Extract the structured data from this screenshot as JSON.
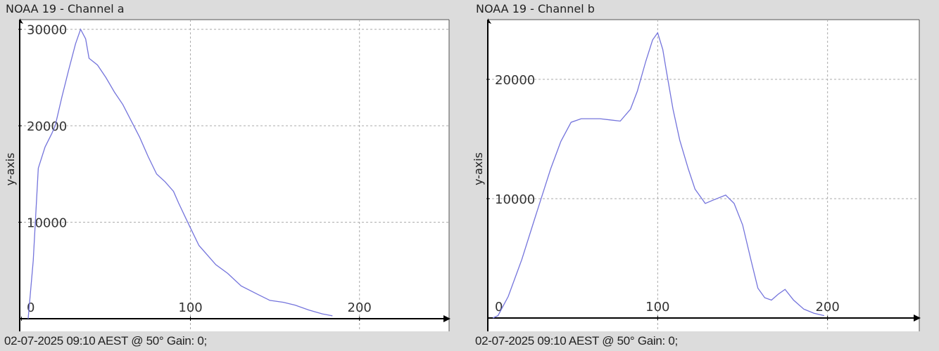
{
  "chart_data": [
    {
      "type": "line",
      "title": "NOAA 19 - Channel a",
      "xlabel": "",
      "ylabel": "y-axis",
      "footer": "02-07-2025 09:10 AEST @ 50° Gain: 0;",
      "xlim": [
        -1,
        253
      ],
      "ylim": [
        0,
        31000
      ],
      "xticks": [
        0,
        100,
        200
      ],
      "xtick_labels": [
        "0",
        "100",
        "200"
      ],
      "yticks": [
        10000,
        20000,
        30000
      ],
      "ytick_labels": [
        "10000",
        "20000",
        "30000"
      ],
      "grid": true,
      "line_color": "#7474dc",
      "series": [
        {
          "name": "Channel a",
          "x": [
            4,
            7,
            10,
            14,
            18,
            20,
            24,
            28,
            32,
            35,
            38,
            40,
            45,
            50,
            55,
            60,
            65,
            70,
            75,
            80,
            85,
            90,
            93,
            97,
            100,
            105,
            110,
            115,
            122,
            130,
            140,
            147,
            155,
            162,
            170,
            178,
            184
          ],
          "y": [
            0,
            6000,
            15600,
            17800,
            19200,
            20000,
            23000,
            25800,
            28500,
            30000,
            29000,
            27000,
            26300,
            25000,
            23500,
            22200,
            20500,
            18800,
            16800,
            15000,
            14200,
            13200,
            12000,
            10500,
            9400,
            7600,
            6600,
            5600,
            4700,
            3400,
            2500,
            1900,
            1700,
            1400,
            900,
            500,
            300
          ]
        }
      ]
    },
    {
      "type": "line",
      "title": "NOAA 19 - Channel b",
      "xlabel": "",
      "ylabel": "y-axis",
      "footer": "02-07-2025 09:10 AEST @ 50° Gain: 0;",
      "xlim": [
        0,
        254
      ],
      "ylim": [
        0,
        25000
      ],
      "xticks": [
        0,
        100,
        200
      ],
      "xtick_labels": [
        "0",
        "100",
        "200"
      ],
      "yticks": [
        10000,
        20000
      ],
      "ytick_labels": [
        "10000",
        "20000"
      ],
      "grid": true,
      "line_color": "#7474dc",
      "series": [
        {
          "name": "Channel b",
          "x": [
            3,
            6,
            12,
            20,
            28,
            37,
            43,
            49,
            55,
            66,
            72,
            78,
            84,
            88,
            93,
            97,
            100,
            103,
            105,
            109,
            113,
            118,
            122,
            126,
            128,
            133,
            140,
            145,
            150,
            155,
            159,
            163,
            167,
            171,
            175,
            180,
            186,
            192,
            198
          ],
          "y": [
            0,
            200,
            1800,
            4900,
            8500,
            12500,
            14800,
            16400,
            16700,
            16700,
            16600,
            16500,
            17500,
            19000,
            21500,
            23300,
            23900,
            22500,
            20800,
            17500,
            14900,
            12500,
            10800,
            10000,
            9600,
            9900,
            10300,
            9600,
            7800,
            4800,
            2500,
            1700,
            1500,
            2000,
            2400,
            1500,
            750,
            400,
            200
          ]
        }
      ]
    }
  ]
}
